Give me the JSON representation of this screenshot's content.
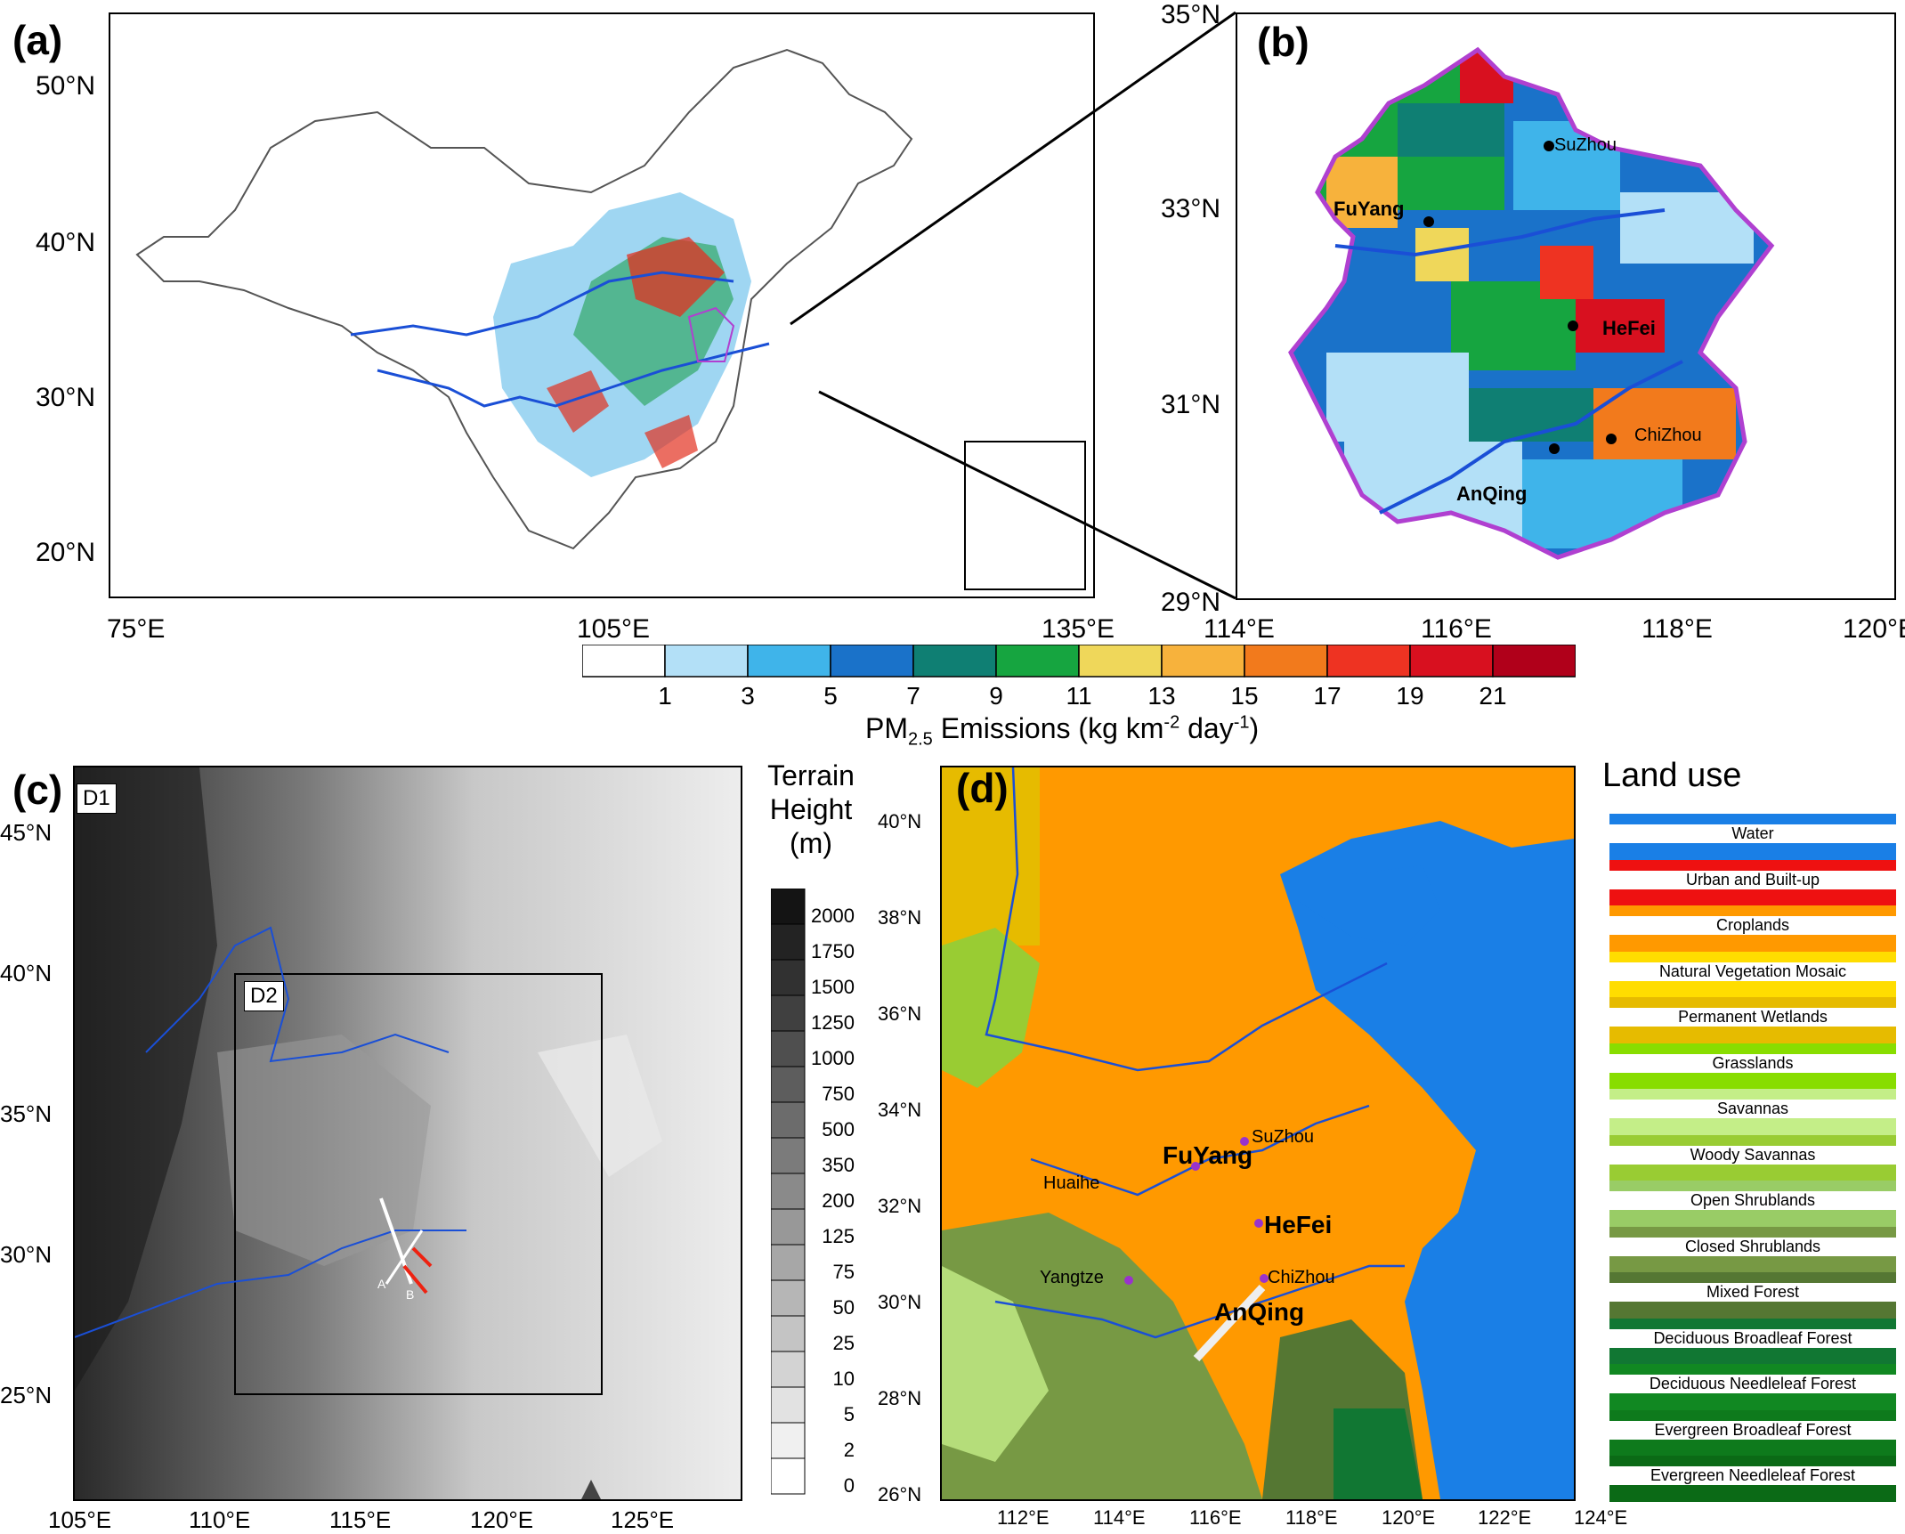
{
  "panel_a": {
    "label": "(a)",
    "lat_ticks": [
      "50°N",
      "40°N",
      "30°N",
      "20°N"
    ],
    "lon_ticks": [
      "75°E",
      "105°E",
      "135°E"
    ]
  },
  "panel_b": {
    "label": "(b)",
    "lat_ticks": [
      "35°N",
      "33°N",
      "31°N",
      "29°N"
    ],
    "lon_ticks": [
      "114°E",
      "116°E",
      "118°E",
      "120°E"
    ],
    "cities": [
      "SuZhou",
      "FuYang",
      "HeFei",
      "ChiZhou",
      "AnQing"
    ]
  },
  "emissions_colorbar": {
    "title_main": "PM",
    "title_sub": "2.5",
    "title_rest": " Emissions (kg km",
    "title_exp": "-2",
    "title_mid": " day",
    "title_exp2": "-1",
    "title_end": ")",
    "ticks": [
      "1",
      "3",
      "5",
      "7",
      "9",
      "11",
      "13",
      "15",
      "17",
      "19",
      "21"
    ],
    "colors": [
      "#ffffff",
      "#b3e0f7",
      "#3fb4ea",
      "#1a72c9",
      "#0f7f73",
      "#16a540",
      "#efd75a",
      "#f7b23c",
      "#f27a1c",
      "#ee3322",
      "#d8101f",
      "#b0001a"
    ]
  },
  "panel_c": {
    "label": "(c)",
    "d1": "D1",
    "d2": "D2",
    "lat_ticks": [
      "45°N",
      "40°N",
      "35°N",
      "30°N",
      "25°N"
    ],
    "lon_ticks": [
      "105°E",
      "110°E",
      "115°E",
      "120°E",
      "125°E"
    ],
    "transect_labels": [
      "A",
      "B"
    ]
  },
  "terrain_colorbar": {
    "title_line1": "Terrain",
    "title_line2": "Height",
    "title_line3": "(m)",
    "ticks": [
      "2000",
      "1750",
      "1500",
      "1250",
      "1000",
      "750",
      "500",
      "350",
      "200",
      "125",
      "75",
      "50",
      "25",
      "10",
      "5",
      "2",
      "0"
    ]
  },
  "panel_d": {
    "label": "(d)",
    "lat_ticks": [
      "40°N",
      "38°N",
      "36°N",
      "34°N",
      "32°N",
      "30°N",
      "28°N",
      "26°N"
    ],
    "lon_ticks": [
      "112°E",
      "114°E",
      "116°E",
      "118°E",
      "120°E",
      "122°E",
      "124°E"
    ],
    "cities": [
      "SuZhou",
      "FuYang",
      "HeFei",
      "ChiZhou",
      "AnQing"
    ],
    "rivers": [
      "Huaihe",
      "Yangtze"
    ]
  },
  "landuse_legend": {
    "title": "Land use",
    "items": [
      {
        "label": "Water",
        "color": "#1a7fe6"
      },
      {
        "label": "Urban and Built-up",
        "color": "#ee1111"
      },
      {
        "label": "Croplands",
        "color": "#ff9900"
      },
      {
        "label": "Natural Vegetation Mosaic",
        "color": "#ffdd00"
      },
      {
        "label": "Permanent Wetlands",
        "color": "#e6bb00"
      },
      {
        "label": "Grasslands",
        "color": "#88dd00"
      },
      {
        "label": "Savannas",
        "color": "#c4ee88"
      },
      {
        "label": "Woody Savannas",
        "color": "#99cc33"
      },
      {
        "label": "Open Shrublands",
        "color": "#99cc66"
      },
      {
        "label": "Closed Shrublands",
        "color": "#779944"
      },
      {
        "label": "Mixed Forest",
        "color": "#557733"
      },
      {
        "label": "Deciduous Broadleaf Forest",
        "color": "#117733"
      },
      {
        "label": "Deciduous Needleleaf Forest",
        "color": "#118822"
      },
      {
        "label": "Evergreen Broadleaf Forest",
        "color": "#0e7a1c"
      },
      {
        "label": "Evergreen Needleleaf Forest",
        "color": "#0b6a16"
      }
    ]
  }
}
